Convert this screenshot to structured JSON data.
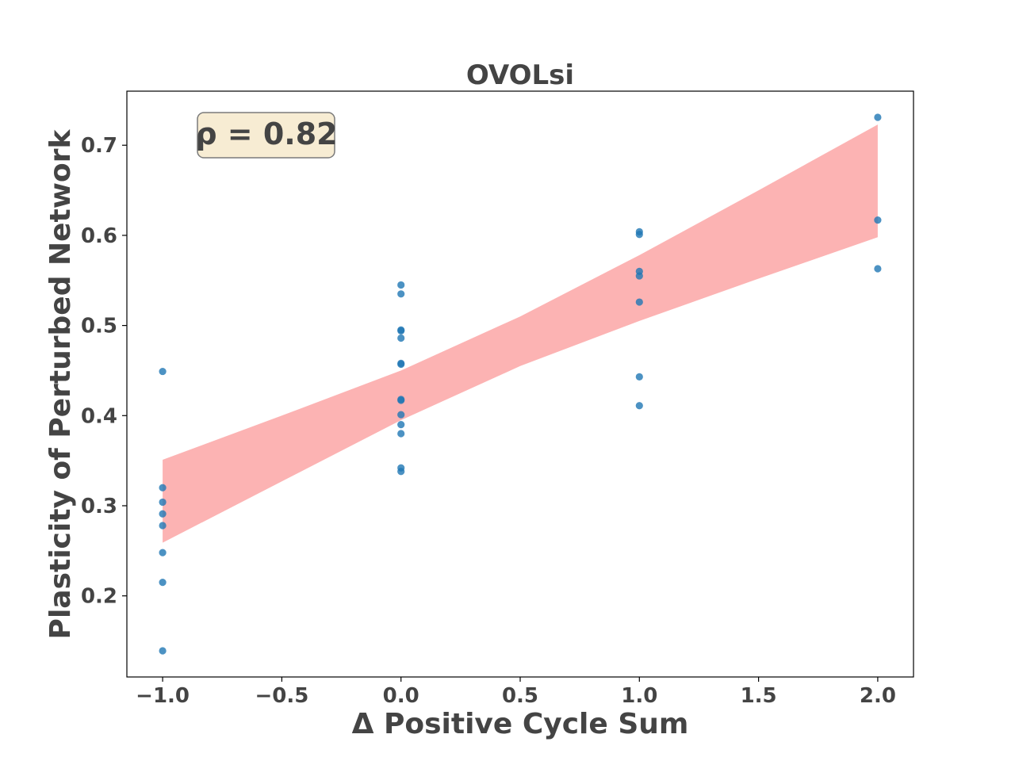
{
  "chart_data": {
    "type": "scatter",
    "title": "OVOLsi",
    "xlabel": "Δ Positive Cycle Sum",
    "ylabel": "Plasticity of Perturbed Network",
    "xlim": [
      -1.15,
      2.15
    ],
    "ylim": [
      0.11,
      0.76
    ],
    "x_ticks": [
      -1.0,
      -0.5,
      0.0,
      0.5,
      1.0,
      1.5,
      2.0
    ],
    "x_tick_labels": [
      "−1.0",
      "−0.5",
      "0.0",
      "0.5",
      "1.0",
      "1.5",
      "2.0"
    ],
    "y_ticks": [
      0.2,
      0.3,
      0.4,
      0.5,
      0.6,
      0.7
    ],
    "y_tick_labels": [
      "0.2",
      "0.3",
      "0.4",
      "0.5",
      "0.6",
      "0.7"
    ],
    "grid": false,
    "annotation": "ρ = 0.82",
    "annotation_placement": "top-left",
    "points": [
      {
        "x": -1,
        "y": 0.449
      },
      {
        "x": -1,
        "y": 0.32
      },
      {
        "x": -1,
        "y": 0.304
      },
      {
        "x": -1,
        "y": 0.291
      },
      {
        "x": -1,
        "y": 0.278
      },
      {
        "x": -1,
        "y": 0.248
      },
      {
        "x": -1,
        "y": 0.215
      },
      {
        "x": -1,
        "y": 0.139
      },
      {
        "x": 0,
        "y": 0.545
      },
      {
        "x": 0,
        "y": 0.535
      },
      {
        "x": 0,
        "y": 0.495
      },
      {
        "x": 0,
        "y": 0.494
      },
      {
        "x": 0,
        "y": 0.486
      },
      {
        "x": 0,
        "y": 0.458
      },
      {
        "x": 0,
        "y": 0.457
      },
      {
        "x": 0,
        "y": 0.418
      },
      {
        "x": 0,
        "y": 0.417
      },
      {
        "x": 0,
        "y": 0.401
      },
      {
        "x": 0,
        "y": 0.39
      },
      {
        "x": 0,
        "y": 0.38
      },
      {
        "x": 0,
        "y": 0.342
      },
      {
        "x": 0,
        "y": 0.338
      },
      {
        "x": 1,
        "y": 0.604
      },
      {
        "x": 1,
        "y": 0.601
      },
      {
        "x": 1,
        "y": 0.56
      },
      {
        "x": 1,
        "y": 0.555
      },
      {
        "x": 1,
        "y": 0.526
      },
      {
        "x": 1,
        "y": 0.443
      },
      {
        "x": 1,
        "y": 0.411
      },
      {
        "x": 2,
        "y": 0.731
      },
      {
        "x": 2,
        "y": 0.617
      },
      {
        "x": 2,
        "y": 0.563
      }
    ],
    "confidence_band": {
      "x": [
        -1.0,
        -0.5,
        0.0,
        0.5,
        1.0,
        1.5,
        2.0
      ],
      "upper": [
        0.351,
        0.4,
        0.45,
        0.51,
        0.578,
        0.65,
        0.723
      ],
      "lower": [
        0.259,
        0.327,
        0.395,
        0.455,
        0.505,
        0.552,
        0.598
      ]
    },
    "colors": {
      "points": "#1f77b4",
      "band": "#fa8b8b",
      "annotation_box": "#f7ecd3",
      "text": "#444444"
    }
  }
}
